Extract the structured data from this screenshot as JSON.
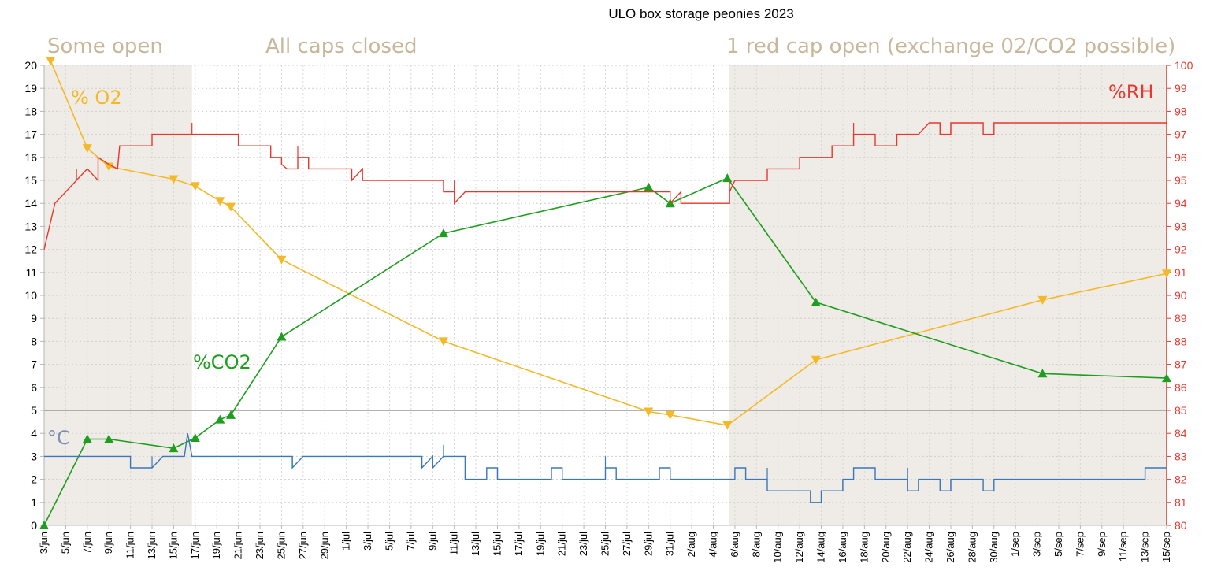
{
  "chart_data": {
    "type": "line",
    "title": "ULO box storage peonies 2023",
    "zones": [
      {
        "label": "Some open",
        "start": 0,
        "end": 13.7,
        "shaded": true
      },
      {
        "label": "All caps closed",
        "start": 13.7,
        "end": 63.5,
        "shaded": false
      },
      {
        "label": "1 red cap open (exchange 02/CO2 possible)",
        "start": 63.5,
        "end": 104,
        "shaded": true
      }
    ],
    "left_axis": {
      "range": [
        0,
        20
      ],
      "ticks": [
        "0",
        "1",
        "2",
        "3",
        "4",
        "5",
        "6",
        "7",
        "8",
        "9",
        "10",
        "11",
        "12",
        "13",
        "14",
        "15",
        "16",
        "17",
        "18",
        "19",
        "20"
      ]
    },
    "right_axis": {
      "label": "%RH",
      "range": [
        80,
        100
      ],
      "ticks": [
        "80",
        "81",
        "82",
        "83",
        "84",
        "85",
        "86",
        "87",
        "88",
        "89",
        "90",
        "91",
        "92",
        "93",
        "94",
        "95",
        "96",
        "97",
        "98",
        "99",
        "100"
      ]
    },
    "x_axis": {
      "unit": "days since 3/jun",
      "range": [
        0,
        104
      ],
      "tick_labels": [
        "3/jun",
        "5/jun",
        "7/jun",
        "9/jun",
        "11/jun",
        "13/jun",
        "15/jun",
        "17/jun",
        "19/jun",
        "21/jun",
        "23/jun",
        "25/jun",
        "27/jun",
        "29/jun",
        "1/jul",
        "3/jul",
        "5/jul",
        "7/jul",
        "9/jul",
        "11/jul",
        "13/jul",
        "15/jul",
        "17/jul",
        "19/jul",
        "21/jul",
        "23/jul",
        "25/jul",
        "27/jul",
        "29/jul",
        "31/jul",
        "2/aug",
        "4/aug",
        "6/aug",
        "8/aug",
        "10/aug",
        "12/aug",
        "14/aug",
        "16/aug",
        "18/aug",
        "20/aug",
        "22/aug",
        "24/aug",
        "26/aug",
        "28/aug",
        "30/aug",
        "1/sep",
        "3/sep",
        "5/sep",
        "7/sep",
        "9/sep",
        "11/sep",
        "13/sep",
        "15/sep"
      ]
    },
    "reference_line": {
      "y": 5,
      "color": "#888888"
    },
    "series": [
      {
        "name": "% O2",
        "axis": "left",
        "color": "#f5b826",
        "marker": "triangle-down",
        "x": [
          0.6,
          4,
          6,
          12,
          14,
          16.3,
          17.3,
          22,
          37,
          56,
          58,
          63.3,
          71.5,
          92.5,
          104
        ],
        "y": [
          20.2,
          16.4,
          15.6,
          15.05,
          14.75,
          14.1,
          13.85,
          11.55,
          8.0,
          4.95,
          4.8,
          4.35,
          7.2,
          9.8,
          10.95
        ]
      },
      {
        "name": "%CO2",
        "axis": "left",
        "color": "#1e9e1e",
        "marker": "triangle-up",
        "x": [
          0,
          4,
          6,
          12,
          14,
          16.3,
          17.3,
          22,
          37,
          56,
          58,
          63.3,
          71.5,
          92.5,
          104
        ],
        "y": [
          0.0,
          3.75,
          3.75,
          3.35,
          3.8,
          4.6,
          4.8,
          8.2,
          12.7,
          14.7,
          14.0,
          15.1,
          9.7,
          6.6,
          6.4
        ]
      },
      {
        "name": "%RH",
        "axis": "right",
        "color": "#e8382e",
        "marker": "none",
        "steps": [
          [
            0,
            92
          ],
          [
            1,
            94
          ],
          [
            2,
            94.5
          ],
          [
            3,
            95
          ],
          [
            4,
            95.5
          ],
          [
            5,
            95
          ],
          [
            5,
            96
          ],
          [
            6,
            95.7
          ],
          [
            6.8,
            95.5
          ],
          [
            7,
            96.5
          ],
          [
            10,
            96.5
          ],
          [
            10,
            97
          ],
          [
            13.7,
            97
          ],
          [
            18,
            97
          ],
          [
            18,
            96.5
          ],
          [
            21,
            96.5
          ],
          [
            21,
            96
          ],
          [
            22,
            96
          ],
          [
            22,
            95.7
          ],
          [
            22.5,
            95.5
          ],
          [
            23.5,
            95.5
          ],
          [
            23.5,
            96
          ],
          [
            24.5,
            96
          ],
          [
            24.5,
            95.5
          ],
          [
            28.5,
            95.5
          ],
          [
            28.5,
            95
          ],
          [
            29.5,
            95.5
          ],
          [
            29.5,
            95
          ],
          [
            37,
            95
          ],
          [
            37,
            94.5
          ],
          [
            38,
            94.5
          ],
          [
            38,
            94
          ],
          [
            39,
            94.5
          ],
          [
            44,
            94.5
          ],
          [
            58,
            94.5
          ],
          [
            58,
            94
          ],
          [
            59,
            94.5
          ],
          [
            59,
            94
          ],
          [
            63.5,
            94
          ],
          [
            63.5,
            94.5
          ],
          [
            64,
            95
          ],
          [
            67,
            95
          ],
          [
            67,
            95.5
          ],
          [
            70,
            95.5
          ],
          [
            70,
            96
          ],
          [
            73,
            96
          ],
          [
            73,
            96.5
          ],
          [
            75,
            96.5
          ],
          [
            75,
            97
          ],
          [
            77,
            97
          ],
          [
            77,
            96.5
          ],
          [
            79,
            96.5
          ],
          [
            79,
            97
          ],
          [
            81,
            97
          ],
          [
            82,
            97.5
          ],
          [
            83,
            97.5
          ],
          [
            83,
            97
          ],
          [
            84,
            97
          ],
          [
            84,
            97.5
          ],
          [
            87,
            97.5
          ],
          [
            87,
            97
          ],
          [
            88,
            97
          ],
          [
            88,
            97.5
          ],
          [
            104,
            97.5
          ]
        ]
      },
      {
        "name": "°C",
        "axis": "left",
        "color": "#3b78b8",
        "marker": "none",
        "steps": [
          [
            0,
            3
          ],
          [
            8,
            3
          ],
          [
            8,
            2.5
          ],
          [
            10,
            2.5
          ],
          [
            11,
            3
          ],
          [
            13,
            3
          ],
          [
            13.3,
            4
          ],
          [
            13.7,
            3
          ],
          [
            23,
            3
          ],
          [
            23,
            2.5
          ],
          [
            24,
            3
          ],
          [
            35,
            3
          ],
          [
            35,
            2.5
          ],
          [
            36,
            3
          ],
          [
            36,
            2.5
          ],
          [
            37,
            3
          ],
          [
            39,
            3
          ],
          [
            39,
            2
          ],
          [
            41,
            2
          ],
          [
            41,
            2.5
          ],
          [
            42,
            2.5
          ],
          [
            42,
            2
          ],
          [
            47,
            2
          ],
          [
            47,
            2.5
          ],
          [
            48,
            2.5
          ],
          [
            48,
            2
          ],
          [
            52,
            2
          ],
          [
            52,
            2.5
          ],
          [
            53,
            2.5
          ],
          [
            53,
            2
          ],
          [
            57,
            2
          ],
          [
            57,
            2.5
          ],
          [
            58,
            2.5
          ],
          [
            58,
            2
          ],
          [
            64,
            2
          ],
          [
            64,
            2.5
          ],
          [
            65,
            2.5
          ],
          [
            65,
            2
          ],
          [
            66,
            2
          ],
          [
            67,
            2
          ],
          [
            67,
            1.5
          ],
          [
            71,
            1.5
          ],
          [
            71,
            1
          ],
          [
            72,
            1
          ],
          [
            72,
            1.5
          ],
          [
            74,
            1.5
          ],
          [
            74,
            2
          ],
          [
            75,
            2
          ],
          [
            75,
            2.5
          ],
          [
            77,
            2.5
          ],
          [
            77,
            2
          ],
          [
            80,
            2
          ],
          [
            80,
            1.5
          ],
          [
            81,
            1.5
          ],
          [
            81,
            2
          ],
          [
            83,
            2
          ],
          [
            83,
            1.5
          ],
          [
            84,
            1.5
          ],
          [
            84,
            2
          ],
          [
            87,
            2
          ],
          [
            87,
            1.5
          ],
          [
            88,
            1.5
          ],
          [
            88,
            2
          ],
          [
            102,
            2
          ],
          [
            102,
            2.5
          ],
          [
            104,
            2.5
          ]
        ]
      }
    ],
    "labels": {
      "o2": "% O2",
      "co2": "%CO2",
      "temp": "°C",
      "rh": "%RH"
    }
  }
}
